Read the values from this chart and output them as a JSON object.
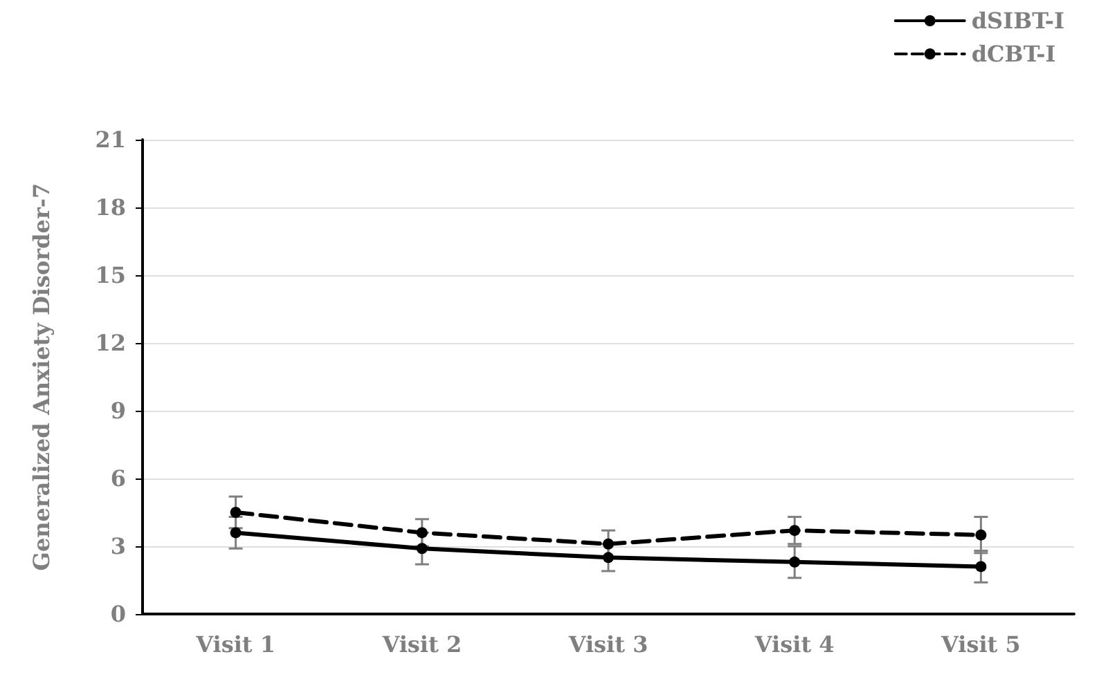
{
  "chart_data": {
    "type": "line",
    "ylabel": "Generalized Anxiety Disorder-7",
    "categories": [
      "Visit 1",
      "Visit 2",
      "Visit 3",
      "Visit 4",
      "Visit 5"
    ],
    "series": [
      {
        "name": "dSIBT-I",
        "color": "#000000",
        "line_style": "solid",
        "values": [
          3.6,
          2.9,
          2.5,
          2.3,
          2.1
        ],
        "errors": [
          0.7,
          0.7,
          0.6,
          0.7,
          0.7
        ]
      },
      {
        "name": "dCBT-I",
        "color": "#000000",
        "line_style": "dashed",
        "values": [
          4.5,
          3.6,
          3.1,
          3.7,
          3.5
        ],
        "errors": [
          0.7,
          0.6,
          0.6,
          0.6,
          0.8
        ]
      }
    ],
    "ylim": [
      0,
      21
    ],
    "yticks": [
      0,
      3,
      6,
      9,
      12,
      15,
      18,
      21
    ],
    "grid": "y",
    "legend": "top right",
    "marker": "circle"
  }
}
